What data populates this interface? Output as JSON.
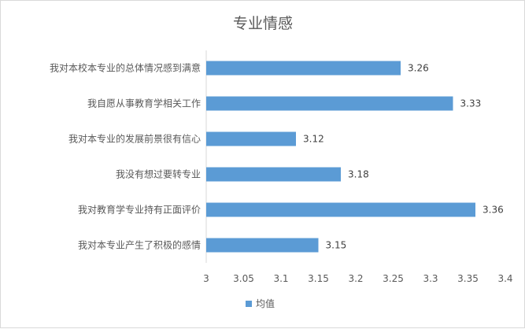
{
  "chart_data": {
    "type": "bar",
    "orientation": "horizontal",
    "title": "专业情感",
    "categories": [
      "我对本校本专业的总体情况感到满意",
      "我自愿从事教育学相关工作",
      "我对本专业的发展前景很有信心",
      "我没有想过要转专业",
      "我对教育学专业持有正面评价",
      "我对本专业产生了积极的感情"
    ],
    "series": [
      {
        "name": "均值",
        "values": [
          3.26,
          3.33,
          3.12,
          3.18,
          3.36,
          3.15
        ],
        "color": "#5b9bd5"
      }
    ],
    "data_labels": [
      "3.26",
      "3.33",
      "3.12",
      "3.18",
      "3.36",
      "3.15"
    ],
    "xlim": [
      3,
      3.4
    ],
    "x_ticks": [
      "3",
      "3.05",
      "3.1",
      "3.15",
      "3.2",
      "3.25",
      "3.3",
      "3.35",
      "3.4"
    ],
    "grid": false,
    "legend": "bottom",
    "xlabel": "",
    "ylabel": ""
  }
}
